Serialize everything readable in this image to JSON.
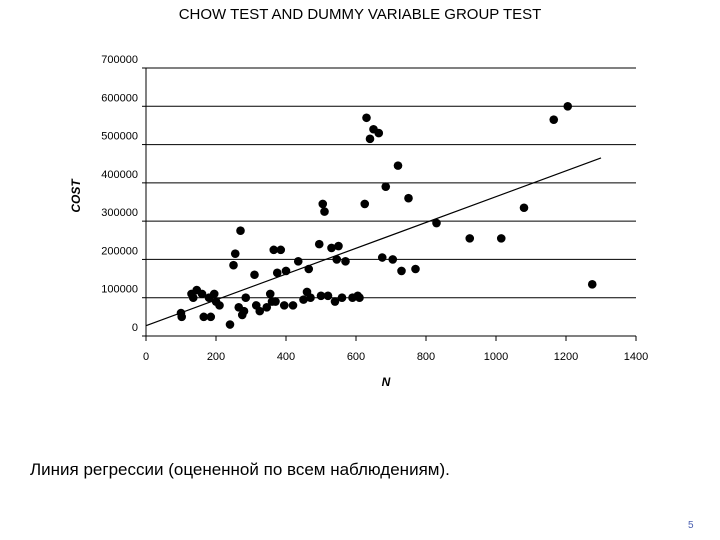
{
  "slide": {
    "title": "CHOW TEST AND DUMMY VARIABLE GROUP TEST",
    "caption": "Линия регрессии (оцененной по всем наблюдениям).",
    "page_number": "5"
  },
  "chart_data": {
    "type": "scatter",
    "xlabel": "N",
    "ylabel": "COST",
    "xlim": [
      0,
      1400
    ],
    "ylim": [
      0,
      700000
    ],
    "xticks": [
      "0",
      "200",
      "400",
      "600",
      "800",
      "1000",
      "1200",
      "1400"
    ],
    "yticks": [
      "0",
      "100000",
      "200000",
      "300000",
      "400000",
      "500000",
      "600000",
      "700000"
    ],
    "grid": "horizontal",
    "marker_color": "#000000",
    "points": [
      [
        100,
        60000
      ],
      [
        102,
        50000
      ],
      [
        130,
        110000
      ],
      [
        135,
        100000
      ],
      [
        145,
        120000
      ],
      [
        160,
        110000
      ],
      [
        165,
        50000
      ],
      [
        180,
        100000
      ],
      [
        185,
        50000
      ],
      [
        195,
        110000
      ],
      [
        200,
        90000
      ],
      [
        210,
        80000
      ],
      [
        240,
        30000
      ],
      [
        250,
        185000
      ],
      [
        255,
        215000
      ],
      [
        265,
        75000
      ],
      [
        270,
        275000
      ],
      [
        275,
        55000
      ],
      [
        280,
        65000
      ],
      [
        285,
        100000
      ],
      [
        310,
        160000
      ],
      [
        315,
        80000
      ],
      [
        325,
        65000
      ],
      [
        345,
        75000
      ],
      [
        355,
        110000
      ],
      [
        360,
        90000
      ],
      [
        365,
        225000
      ],
      [
        370,
        90000
      ],
      [
        375,
        165000
      ],
      [
        385,
        225000
      ],
      [
        395,
        80000
      ],
      [
        400,
        170000
      ],
      [
        420,
        80000
      ],
      [
        435,
        195000
      ],
      [
        450,
        95000
      ],
      [
        460,
        115000
      ],
      [
        465,
        175000
      ],
      [
        470,
        100000
      ],
      [
        495,
        240000
      ],
      [
        500,
        105000
      ],
      [
        505,
        345000
      ],
      [
        510,
        325000
      ],
      [
        520,
        105000
      ],
      [
        530,
        230000
      ],
      [
        540,
        90000
      ],
      [
        545,
        200000
      ],
      [
        550,
        235000
      ],
      [
        560,
        100000
      ],
      [
        570,
        195000
      ],
      [
        590,
        100000
      ],
      [
        605,
        105000
      ],
      [
        610,
        100000
      ],
      [
        625,
        345000
      ],
      [
        630,
        570000
      ],
      [
        640,
        515000
      ],
      [
        650,
        540000
      ],
      [
        665,
        530000
      ],
      [
        675,
        205000
      ],
      [
        685,
        390000
      ],
      [
        705,
        200000
      ],
      [
        720,
        445000
      ],
      [
        730,
        170000
      ],
      [
        750,
        360000
      ],
      [
        770,
        175000
      ],
      [
        830,
        295000
      ],
      [
        925,
        255000
      ],
      [
        1015,
        255000
      ],
      [
        1080,
        335000
      ],
      [
        1165,
        565000
      ],
      [
        1205,
        600000
      ],
      [
        1275,
        135000
      ]
    ],
    "regression_line": {
      "x": [
        0,
        1300
      ],
      "y": [
        27000,
        465000
      ]
    }
  }
}
